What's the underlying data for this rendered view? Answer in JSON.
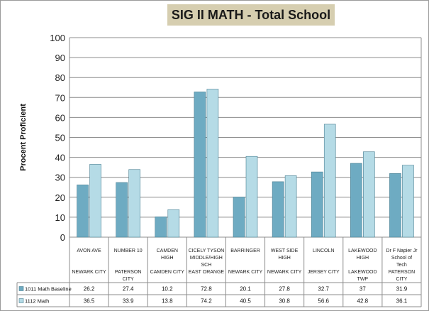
{
  "chart_data": {
    "type": "bar",
    "title": "SIG II MATH - Total School",
    "ylabel": "Procent Proficient",
    "xlabel": "",
    "ylim": [
      0,
      100
    ],
    "yticks": [
      0,
      10,
      20,
      30,
      40,
      50,
      60,
      70,
      80,
      90,
      100
    ],
    "grid": true,
    "legend": "table-left",
    "categories": [
      {
        "school": [
          "AVON AVE"
        ],
        "city": [
          "NEWARK CITY"
        ]
      },
      {
        "school": [
          "NUMBER 10"
        ],
        "city": [
          "PATERSON",
          "CITY"
        ]
      },
      {
        "school": [
          "CAMDEN",
          "HIGH"
        ],
        "city": [
          "CAMDEN CITY"
        ]
      },
      {
        "school": [
          "CICELY TYSON",
          "MIDDLE/HIGH",
          "SCH"
        ],
        "city": [
          "EAST ORANGE"
        ]
      },
      {
        "school": [
          "BARRINGER"
        ],
        "city": [
          "NEWARK CITY"
        ]
      },
      {
        "school": [
          "WEST SIDE",
          "HIGH"
        ],
        "city": [
          "NEWARK CITY"
        ]
      },
      {
        "school": [
          "LINCOLN"
        ],
        "city": [
          "JERSEY CITY"
        ]
      },
      {
        "school": [
          "LAKEWOOD",
          "HIGH"
        ],
        "city": [
          "LAKEWOOD",
          "TWP"
        ]
      },
      {
        "school": [
          "Dr F Napier Jr",
          "School of",
          "Tech"
        ],
        "city": [
          "PATERSON",
          "CITY"
        ]
      }
    ],
    "series": [
      {
        "name": "1011 Math Baseline",
        "color": "#6eabc2",
        "values": [
          26.2,
          27.4,
          10.2,
          72.8,
          20.1,
          27.8,
          32.7,
          37,
          31.9
        ],
        "labels": [
          "26.2",
          "27.4",
          "10.2",
          "72.8",
          "20.1",
          "27.8",
          "32.7",
          "37",
          "31.9"
        ]
      },
      {
        "name": "1112 Math",
        "color": "#b5dbe6",
        "values": [
          36.5,
          33.9,
          13.8,
          74.2,
          40.5,
          30.8,
          56.6,
          42.8,
          36.1
        ],
        "labels": [
          "36.5",
          "33.9",
          "13.8",
          "74.2",
          "40.5",
          "30.8",
          "56.6",
          "42.8",
          "36.1"
        ]
      }
    ]
  }
}
